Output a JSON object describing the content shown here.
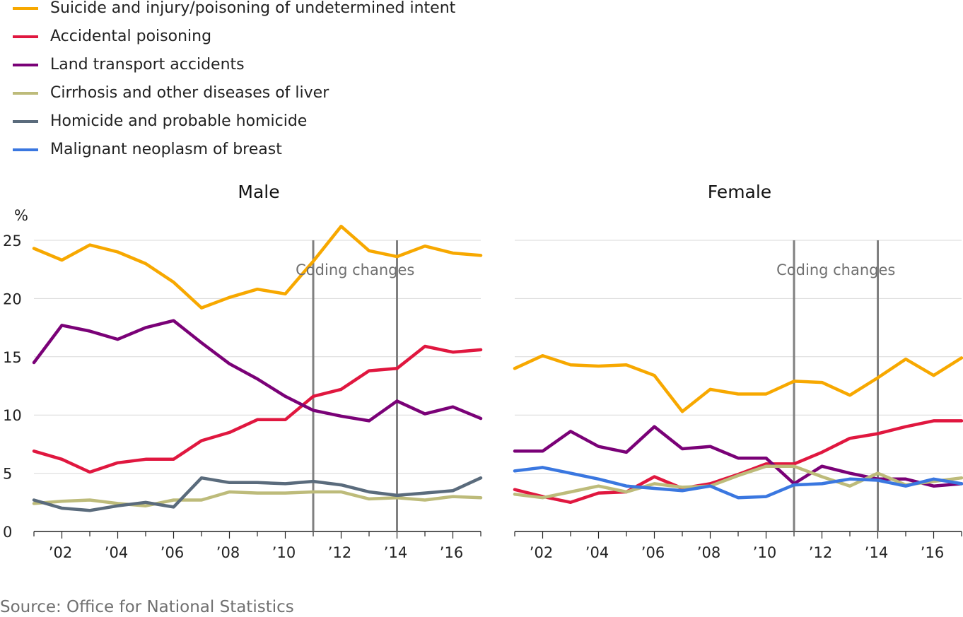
{
  "legend": [
    {
      "name": "Suicide and injury/poisoning of undetermined intent",
      "color": "#f7a800"
    },
    {
      "name": "Accidental poisoning",
      "color": "#e0173f"
    },
    {
      "name": "Land transport accidents",
      "color": "#7a0177"
    },
    {
      "name": "Cirrhosis and other diseases of liver",
      "color": "#bdbb7a"
    },
    {
      "name": "Homicide and probable homicide",
      "color": "#5a6b7c"
    },
    {
      "name": "Malignant neoplasm of breast",
      "color": "#3a77e0"
    }
  ],
  "source": "Source: Office for National Statistics",
  "chart_data": [
    {
      "type": "line",
      "title": "Male",
      "ylabel": "%",
      "ylim": [
        0,
        25
      ],
      "yticks": [
        0,
        5,
        10,
        15,
        20,
        25
      ],
      "x": [
        2001,
        2002,
        2003,
        2004,
        2005,
        2006,
        2007,
        2008,
        2009,
        2010,
        2011,
        2012,
        2013,
        2014,
        2015,
        2016,
        2017
      ],
      "xticks": [
        2002,
        2004,
        2006,
        2008,
        2010,
        2012,
        2014,
        2016
      ],
      "xtick_labels": [
        "’02",
        "’04",
        "’06",
        "’08",
        "’10",
        "’12",
        "’14",
        "’16"
      ],
      "grid": true,
      "annotations": [
        {
          "text": "Coding changes",
          "x_lines": [
            2011,
            2014
          ]
        }
      ],
      "series": [
        {
          "name": "Suicide and injury/poisoning of undetermined intent",
          "color": "#f7a800",
          "values": [
            24.3,
            23.3,
            24.6,
            24.0,
            23.0,
            21.4,
            19.2,
            20.1,
            20.8,
            20.4,
            23.2,
            26.2,
            24.1,
            23.6,
            24.5,
            23.9,
            23.7
          ]
        },
        {
          "name": "Accidental poisoning",
          "color": "#e0173f",
          "values": [
            6.9,
            6.2,
            5.1,
            5.9,
            6.2,
            6.2,
            7.8,
            8.5,
            9.6,
            9.6,
            11.6,
            12.2,
            13.8,
            14.0,
            15.9,
            15.4,
            15.6
          ]
        },
        {
          "name": "Land transport accidents",
          "color": "#7a0177",
          "values": [
            14.5,
            17.7,
            17.2,
            16.5,
            17.5,
            18.1,
            16.2,
            14.4,
            13.1,
            11.6,
            10.4,
            9.9,
            9.5,
            11.2,
            10.1,
            10.7,
            9.7
          ]
        },
        {
          "name": "Cirrhosis and other diseases of liver",
          "color": "#bdbb7a",
          "values": [
            2.4,
            2.6,
            2.7,
            2.4,
            2.2,
            2.7,
            2.7,
            3.4,
            3.3,
            3.3,
            3.4,
            3.4,
            2.8,
            2.9,
            2.7,
            3.0,
            2.9
          ]
        },
        {
          "name": "Homicide and probable homicide",
          "color": "#5a6b7c",
          "values": [
            2.7,
            2.0,
            1.8,
            2.2,
            2.5,
            2.1,
            4.6,
            4.2,
            4.2,
            4.1,
            4.3,
            4.0,
            3.4,
            3.1,
            3.3,
            3.5,
            4.6
          ]
        }
      ]
    },
    {
      "type": "line",
      "title": "Female",
      "ylim": [
        0,
        25
      ],
      "yticks": [
        0,
        5,
        10,
        15,
        20,
        25
      ],
      "x": [
        2001,
        2002,
        2003,
        2004,
        2005,
        2006,
        2007,
        2008,
        2009,
        2010,
        2011,
        2012,
        2013,
        2014,
        2015,
        2016,
        2017
      ],
      "xticks": [
        2002,
        2004,
        2006,
        2008,
        2010,
        2012,
        2014,
        2016
      ],
      "xtick_labels": [
        "’02",
        "’04",
        "’06",
        "’08",
        "’10",
        "’12",
        "’14",
        "’16"
      ],
      "grid": true,
      "annotations": [
        {
          "text": "Coding changes",
          "x_lines": [
            2011,
            2014
          ]
        }
      ],
      "series": [
        {
          "name": "Suicide and injury/poisoning of undetermined intent",
          "color": "#f7a800",
          "values": [
            14.0,
            15.1,
            14.3,
            14.2,
            14.3,
            13.4,
            10.3,
            12.2,
            11.8,
            11.8,
            12.9,
            12.8,
            11.7,
            13.2,
            14.8,
            13.4,
            14.9
          ]
        },
        {
          "name": "Accidental poisoning",
          "color": "#e0173f",
          "values": [
            3.6,
            3.0,
            2.5,
            3.3,
            3.4,
            4.7,
            3.7,
            4.1,
            4.9,
            5.8,
            5.8,
            6.8,
            8.0,
            8.4,
            9.0,
            9.5,
            9.5
          ]
        },
        {
          "name": "Land transport accidents",
          "color": "#7a0177",
          "values": [
            6.9,
            6.9,
            8.6,
            7.3,
            6.8,
            9.0,
            7.1,
            7.3,
            6.3,
            6.3,
            4.1,
            5.6,
            5.0,
            4.5,
            4.5,
            3.9,
            4.1
          ]
        },
        {
          "name": "Cirrhosis and other diseases of liver",
          "color": "#bdbb7a",
          "values": [
            3.2,
            2.9,
            3.4,
            3.9,
            3.4,
            4.1,
            3.8,
            3.9,
            4.8,
            5.6,
            5.6,
            4.7,
            3.9,
            5.0,
            4.0,
            4.3,
            4.6
          ]
        },
        {
          "name": "Malignant neoplasm of breast",
          "color": "#3a77e0",
          "values": [
            5.2,
            5.5,
            5.0,
            4.5,
            3.9,
            3.7,
            3.5,
            3.9,
            2.9,
            3.0,
            4.0,
            4.1,
            4.5,
            4.4,
            3.9,
            4.5,
            4.1
          ]
        }
      ]
    }
  ]
}
